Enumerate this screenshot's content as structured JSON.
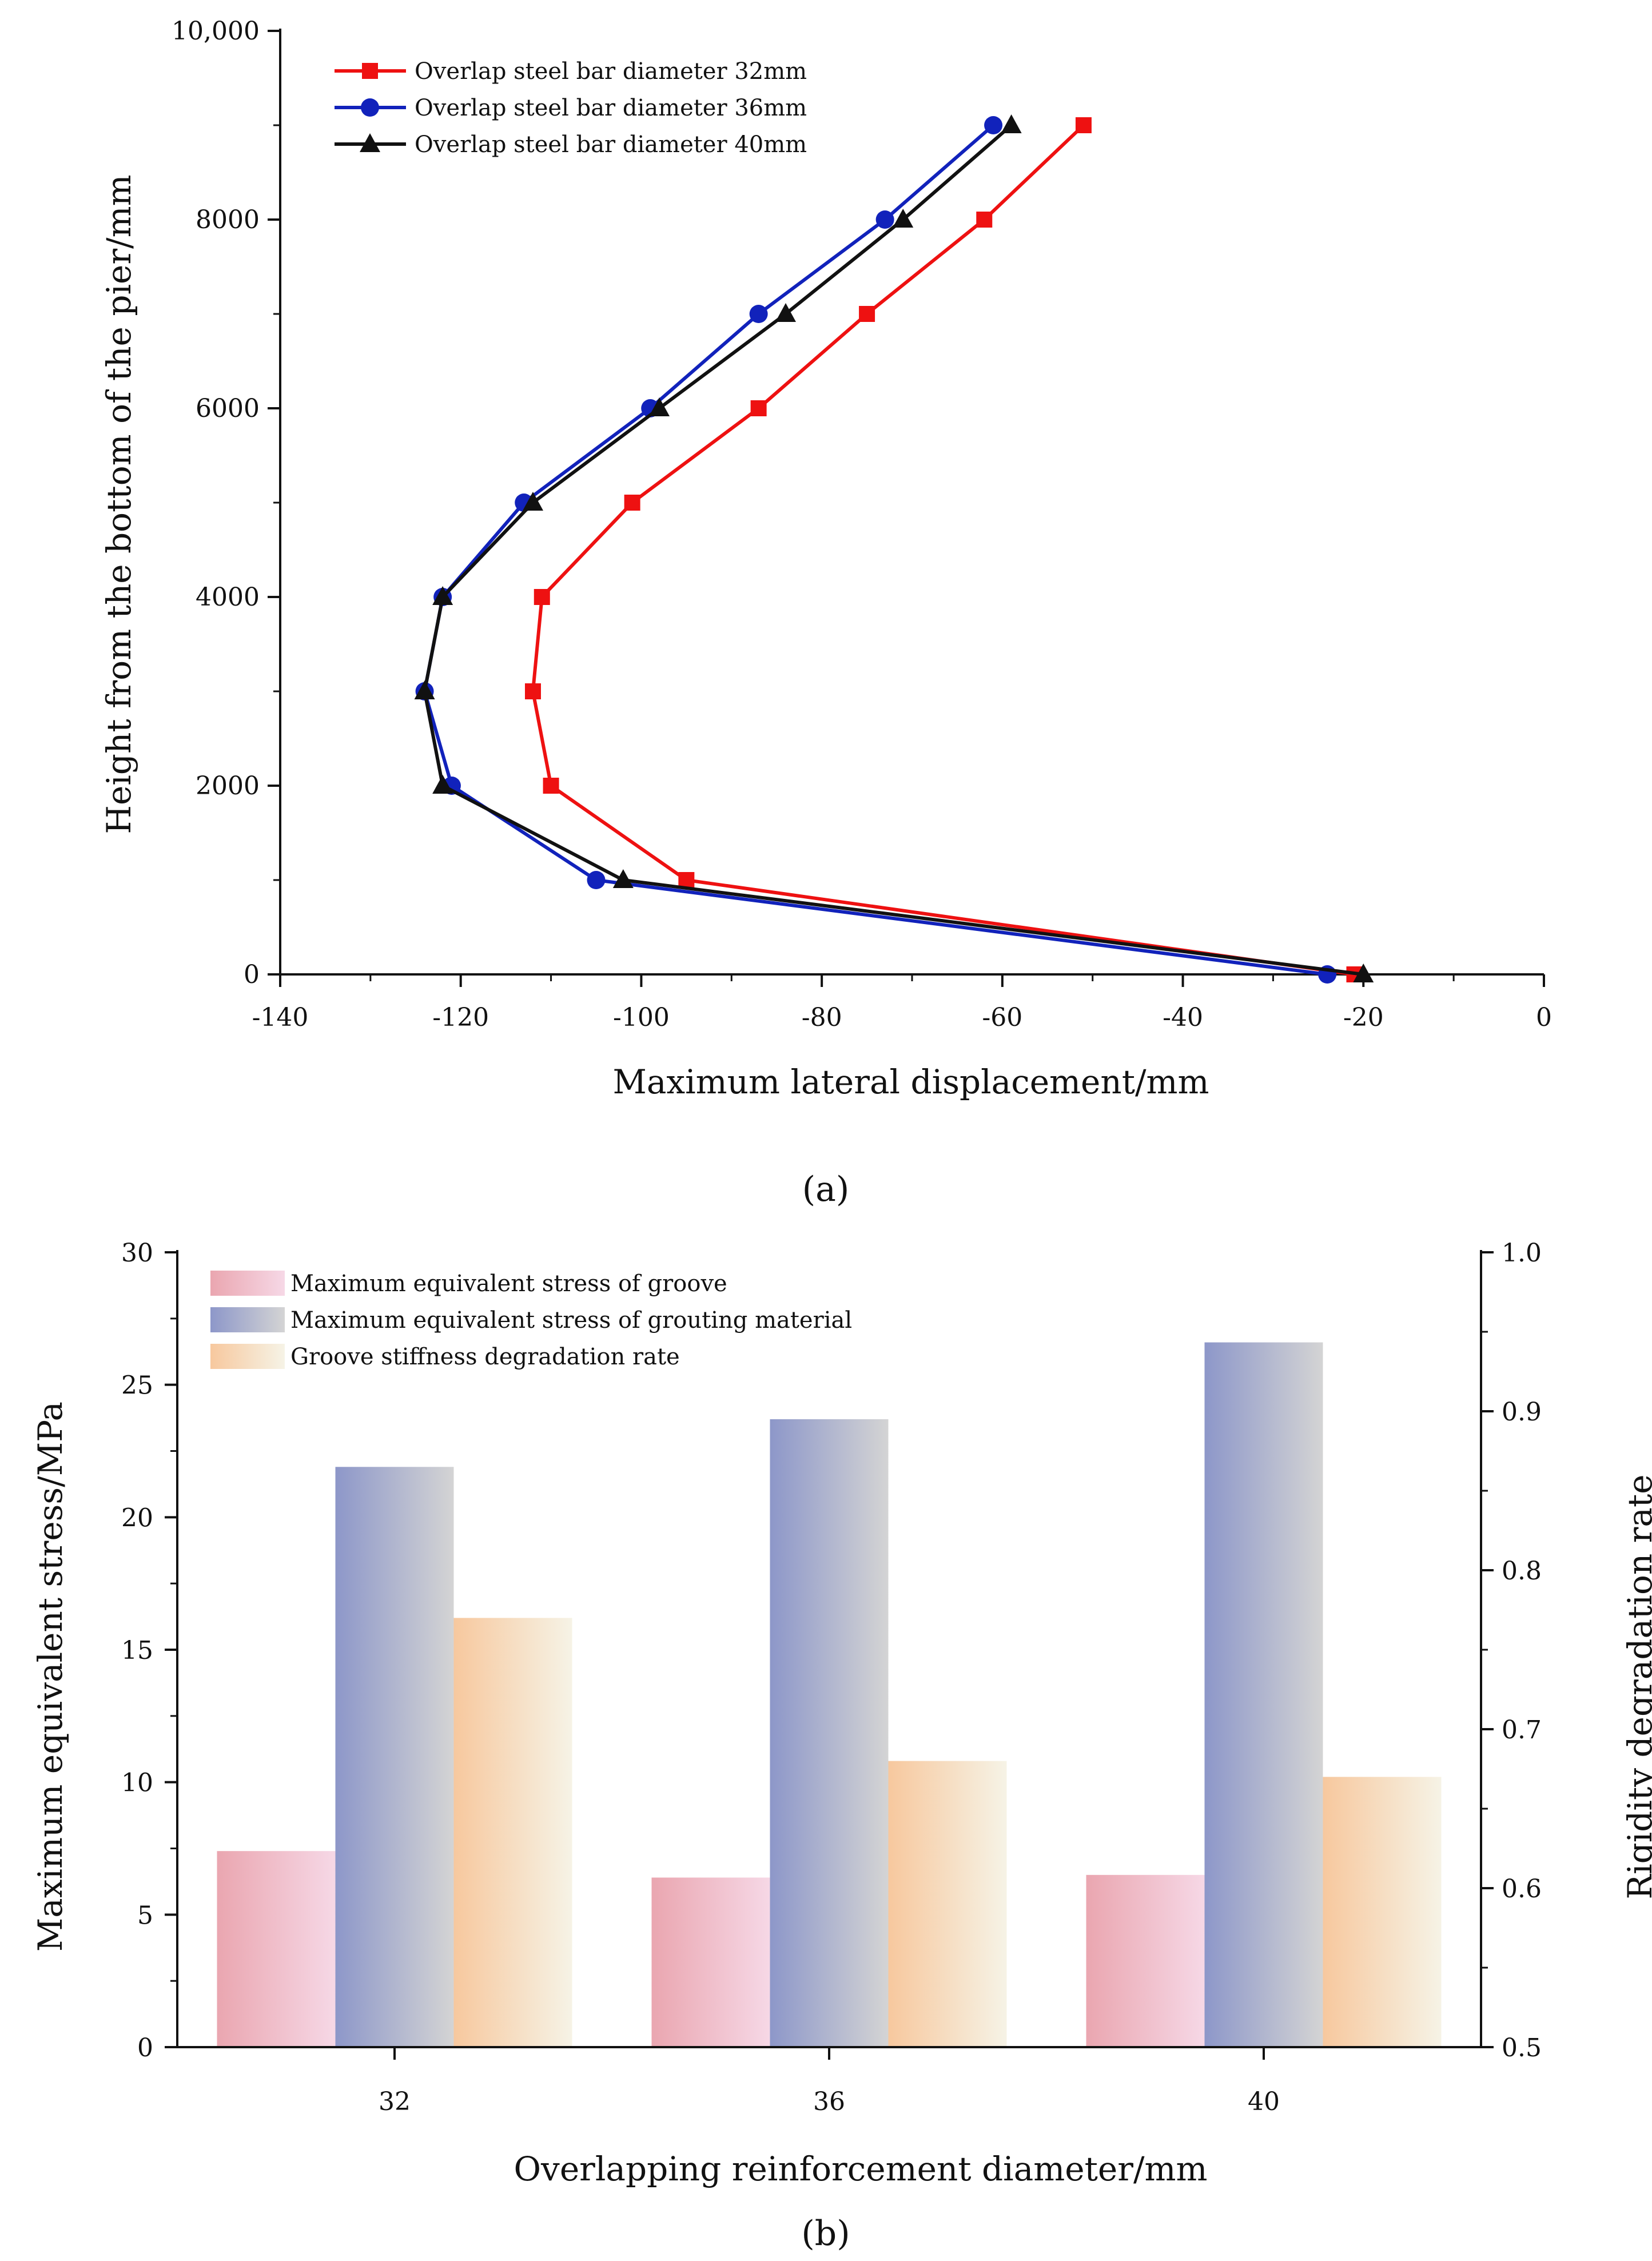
{
  "figure": {
    "panel_a_label": "(a)",
    "panel_b_label": "(b)"
  },
  "chart_data": [
    {
      "type": "line",
      "xlabel": "Maximum lateral displacement/mm",
      "ylabel": "Height from the bottom of the pier/mm",
      "xlim": [
        -140,
        0
      ],
      "ylim": [
        0,
        10000
      ],
      "xticks": [
        -140,
        -120,
        -100,
        -80,
        -60,
        -40,
        -20,
        0
      ],
      "xtick_labels": [
        "-140",
        "-120",
        "-100",
        "-80",
        "-60",
        "-40",
        "-20",
        "0"
      ],
      "yticks": [
        0,
        2000,
        4000,
        6000,
        8000,
        10000
      ],
      "ytick_labels": [
        "0",
        "2000",
        "4000",
        "6000",
        "8000",
        "10,000"
      ],
      "legend_position": "top-left",
      "grid": false,
      "series": [
        {
          "name": "Overlap steel bar diameter 32mm",
          "color": "#ee1111",
          "marker": "square",
          "x": [
            -21,
            -95,
            -110,
            -112,
            -111,
            -101,
            -87,
            -75,
            -62,
            -51
          ],
          "y": [
            0,
            1000,
            2000,
            3000,
            4000,
            5000,
            6000,
            7000,
            8000,
            9000
          ]
        },
        {
          "name": "Overlap steel bar diameter 36mm",
          "color": "#1122bb",
          "marker": "circle",
          "x": [
            -24,
            -105,
            -121,
            -124,
            -122,
            -113,
            -99,
            -87,
            -73,
            -61
          ],
          "y": [
            0,
            1000,
            2000,
            3000,
            4000,
            5000,
            6000,
            7000,
            8000,
            9000
          ]
        },
        {
          "name": "Overlap steel bar diameter 40mm",
          "color": "#111111",
          "marker": "triangle",
          "x": [
            -20,
            -102,
            -122,
            -124,
            -122,
            -112,
            -98,
            -84,
            -71,
            -59
          ],
          "y": [
            0,
            1000,
            2000,
            3000,
            4000,
            5000,
            6000,
            7000,
            8000,
            9000
          ]
        }
      ]
    },
    {
      "type": "bar",
      "xlabel": "Overlapping reinforcement diameter/mm",
      "ylabel": "Maximum equivalent stress/MPa",
      "y2label": "Rigidity degradation rate",
      "categories": [
        "32",
        "36",
        "40"
      ],
      "ylim": [
        0,
        30
      ],
      "yticks": [
        0,
        5,
        10,
        15,
        20,
        25,
        30
      ],
      "ytick_labels": [
        "0",
        "5",
        "10",
        "15",
        "20",
        "25",
        "30"
      ],
      "y2lim": [
        0.5,
        1.0
      ],
      "y2ticks": [
        0.5,
        0.6,
        0.7,
        0.8,
        0.9,
        1.0
      ],
      "y2tick_labels": [
        "0.5",
        "0.6",
        "0.7",
        "0.8",
        "0.9",
        "1.0"
      ],
      "legend_position": "top-left",
      "grid": false,
      "series": [
        {
          "name": "Maximum equivalent stress of groove",
          "axis": "left",
          "gradient": [
            "#eaa6b0",
            "#f6d8e6"
          ],
          "values": [
            7.4,
            6.4,
            6.5
          ]
        },
        {
          "name": "Maximum equivalent stress of grouting material",
          "axis": "left",
          "gradient": [
            "#8d97c9",
            "#d4d4d4"
          ],
          "values": [
            21.9,
            23.7,
            26.6
          ]
        },
        {
          "name": "Groove stiffness degradation rate",
          "axis": "right",
          "gradient": [
            "#f7c89e",
            "#f6f3e6"
          ],
          "values": [
            0.77,
            0.68,
            0.67
          ]
        }
      ]
    }
  ]
}
